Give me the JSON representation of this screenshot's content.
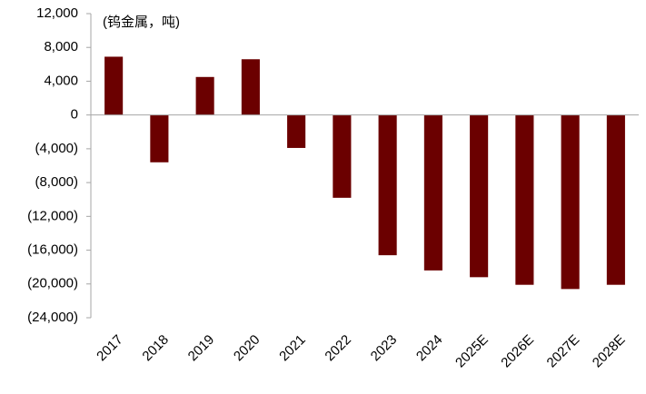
{
  "chart_data": {
    "type": "bar",
    "annotation": "(钨金属，吨)",
    "categories": [
      "2017",
      "2018",
      "2019",
      "2020",
      "2021",
      "2022",
      "2023",
      "2024",
      "2025E",
      "2026E",
      "2027E",
      "2028E"
    ],
    "values": [
      6900,
      -5600,
      4500,
      6600,
      -3900,
      -9800,
      -16600,
      -18400,
      -19200,
      -20100,
      -20600,
      -20100
    ],
    "color": "#6b0000",
    "negative_tick_color": "#ff0000",
    "ylim": [
      -24000,
      12000
    ],
    "yticks": [
      {
        "value": -24000,
        "label": "(24,000)"
      },
      {
        "value": -20000,
        "label": "(20,000)"
      },
      {
        "value": -16000,
        "label": "(16,000)"
      },
      {
        "value": -12000,
        "label": "(12,000)"
      },
      {
        "value": -8000,
        "label": "(8,000)"
      },
      {
        "value": -4000,
        "label": "(4,000)"
      },
      0,
      {
        "value": 4000,
        "label": "4,000"
      },
      {
        "value": 8000,
        "label": "8,000"
      },
      {
        "value": 12000,
        "label": "12,000"
      }
    ]
  }
}
